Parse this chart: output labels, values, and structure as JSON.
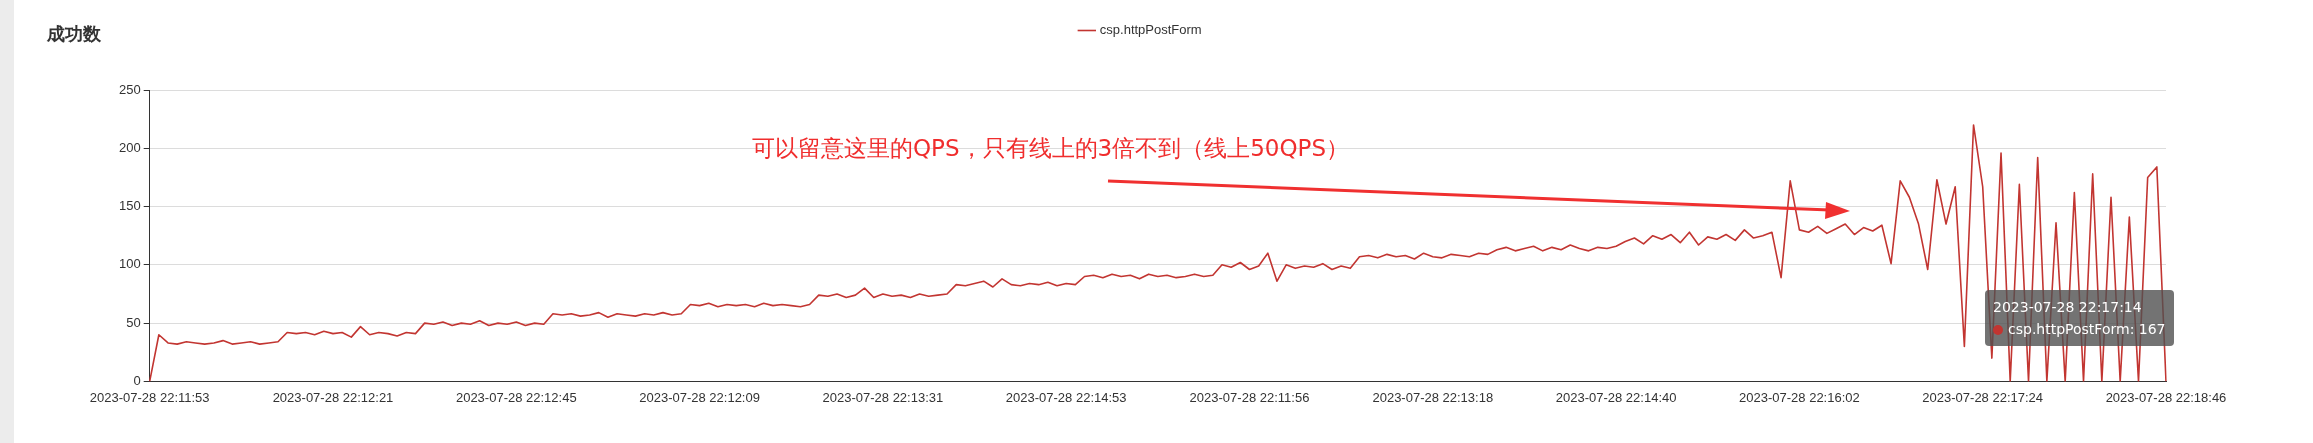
{
  "chart_data": {
    "type": "line",
    "title": "成功数",
    "categories": [
      "2023-07-28 22:11:53",
      null,
      null,
      null,
      null,
      null,
      null,
      null,
      null,
      null,
      null,
      null,
      null,
      null,
      null,
      null,
      null,
      null,
      null,
      null,
      "2023-07-28 22:12:21",
      null,
      null,
      null,
      null,
      null,
      null,
      null,
      null,
      null,
      null,
      null,
      null,
      null,
      null,
      null,
      null,
      null,
      null,
      null,
      "2023-07-28 22:12:45",
      null,
      null,
      null,
      null,
      null,
      null,
      null,
      null,
      null,
      null,
      null,
      null,
      null,
      null,
      null,
      null,
      null,
      null,
      null,
      "2023-07-28 22:12:09",
      null,
      null,
      null,
      null,
      null,
      null,
      null,
      null,
      null,
      null,
      null,
      null,
      null,
      null,
      null,
      null,
      null,
      null,
      null,
      "2023-07-28 22:13:31",
      null,
      null,
      null,
      null,
      null,
      null,
      null,
      null,
      null,
      null,
      null,
      null,
      null,
      null,
      null,
      null,
      null,
      null,
      null,
      "2023-07-28 22:14:53",
      null,
      null,
      null,
      null,
      null,
      null,
      null,
      null,
      null,
      null,
      null,
      null,
      null,
      null,
      null,
      null,
      null,
      null,
      null,
      "2023-07-28 22:11:56",
      null,
      null,
      null,
      null,
      null,
      null,
      null,
      null,
      null,
      null,
      null,
      null,
      null,
      null,
      null,
      null,
      null,
      null,
      null,
      "2023-07-28 22:13:18",
      null,
      null,
      null,
      null,
      null,
      null,
      null,
      null,
      null,
      null,
      null,
      null,
      null,
      null,
      null,
      null,
      null,
      null,
      null,
      "2023-07-28 22:14:40",
      null,
      null,
      null,
      null,
      null,
      null,
      null,
      null,
      null,
      null,
      null,
      null,
      null,
      null,
      null,
      null,
      null,
      null,
      null,
      "2023-07-28 22:16:02",
      null,
      null,
      null,
      null,
      null,
      null,
      null,
      null,
      null,
      null,
      null,
      null,
      null,
      null,
      null,
      null,
      null,
      null,
      null,
      "2023-07-28 22:17:24",
      null,
      null,
      null,
      null,
      null,
      null,
      null,
      null,
      null,
      null,
      null,
      null,
      null,
      null,
      null,
      null,
      null,
      null,
      null,
      "2023-07-28 22:18:46"
    ],
    "series": [
      {
        "name": "csp.httpPostForm",
        "color": "#c23531",
        "values": [
          0,
          40,
          33,
          32,
          34,
          33,
          32,
          33,
          35,
          32,
          33,
          34,
          32,
          33,
          34,
          42,
          41,
          42,
          40,
          43,
          41,
          42,
          38,
          47,
          40,
          42,
          41,
          39,
          42,
          41,
          50,
          49,
          51,
          48,
          50,
          49,
          52,
          48,
          50,
          49,
          51,
          48,
          50,
          49,
          58,
          57,
          58,
          56,
          57,
          59,
          55,
          58,
          57,
          56,
          58,
          57,
          59,
          57,
          58,
          66,
          65,
          67,
          64,
          66,
          65,
          66,
          64,
          67,
          65,
          66,
          65,
          64,
          66,
          74,
          73,
          75,
          72,
          74,
          80,
          72,
          75,
          73,
          74,
          72,
          75,
          73,
          74,
          75,
          83,
          82,
          84,
          86,
          81,
          88,
          83,
          82,
          84,
          83,
          85,
          82,
          84,
          83,
          90,
          91,
          89,
          92,
          90,
          91,
          88,
          92,
          90,
          91,
          89,
          90,
          92,
          90,
          91,
          100,
          98,
          102,
          96,
          99,
          110,
          86,
          100,
          97,
          99,
          98,
          101,
          96,
          99,
          97,
          107,
          108,
          106,
          109,
          107,
          108,
          105,
          110,
          107,
          106,
          109,
          108,
          107,
          110,
          109,
          113,
          115,
          112,
          114,
          116,
          112,
          115,
          113,
          117,
          114,
          112,
          115,
          114,
          116,
          120,
          123,
          118,
          125,
          122,
          126,
          119,
          128,
          117,
          124,
          122,
          126,
          121,
          130,
          123,
          125,
          128,
          89,
          172,
          130,
          128,
          133,
          127,
          131,
          135,
          126,
          132,
          129,
          134,
          101,
          172,
          158,
          135,
          96,
          173,
          135,
          167,
          30,
          220,
          167,
          20,
          196,
          0,
          169,
          0,
          192,
          0,
          136,
          0,
          162,
          0,
          178,
          0,
          158,
          0,
          141,
          0,
          175,
          184,
          0
        ]
      }
    ],
    "ylim": [
      0,
      250
    ],
    "yticks": [
      0,
      50,
      100,
      150,
      200,
      250
    ],
    "grid": "y",
    "legend": "top",
    "annotations": [
      "可以留意这里的QPS，只有线上的3倍不到（线上50QPS）",
      "2023-07-28 22:17:14",
      "csp.httpPostForm: 167"
    ]
  }
}
